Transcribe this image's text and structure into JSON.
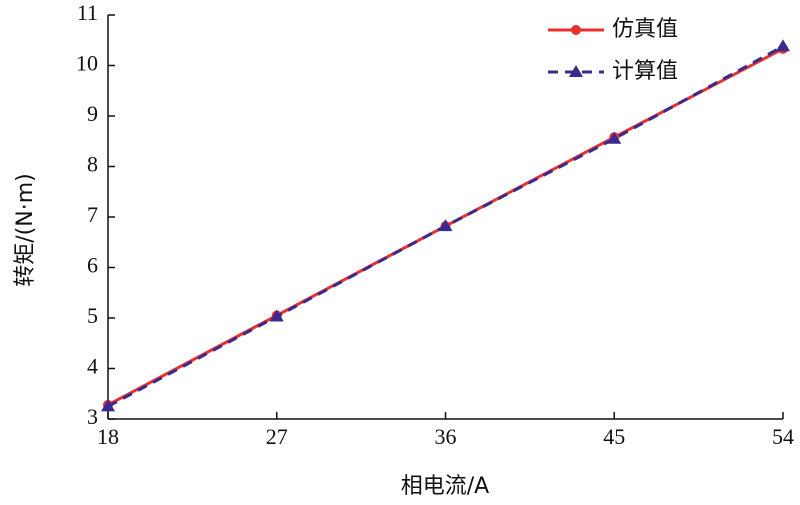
{
  "chart_data": {
    "type": "line",
    "xlabel": "相电流/A",
    "ylabel": "转矩/(N·m)",
    "x": [
      18,
      27,
      36,
      45,
      54
    ],
    "series": [
      {
        "name": "仿真值",
        "color": "#e8312f",
        "line_style": "solid",
        "marker": "circle",
        "values": [
          3.28,
          5.05,
          6.82,
          8.58,
          10.33
        ]
      },
      {
        "name": "计算值",
        "color": "#3b2a8c",
        "line_style": "dashed",
        "marker": "triangle",
        "values": [
          3.25,
          5.03,
          6.82,
          8.55,
          10.38
        ]
      }
    ],
    "xlim": [
      18,
      54
    ],
    "xticks": [
      18,
      27,
      36,
      45,
      54
    ],
    "ylim": [
      3,
      11
    ],
    "yticks": [
      3,
      4,
      5,
      6,
      7,
      8,
      9,
      10,
      11
    ],
    "legend": "upper-right",
    "grid": false
  }
}
